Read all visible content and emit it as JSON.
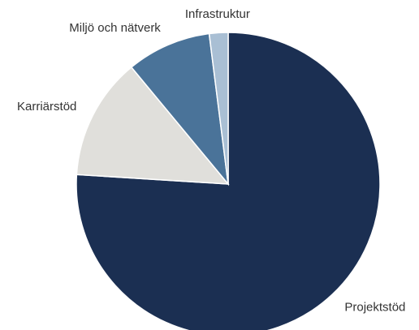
{
  "chart_data": {
    "type": "pie",
    "categories": [
      "Projektstöd",
      "Karriärstöd",
      "Miljö och nätverk",
      "Infrastruktur"
    ],
    "values": [
      76,
      13,
      9,
      2
    ],
    "colors": [
      "#1b2f52",
      "#e0dfdb",
      "#4a7399",
      "#a9bfd4"
    ]
  }
}
